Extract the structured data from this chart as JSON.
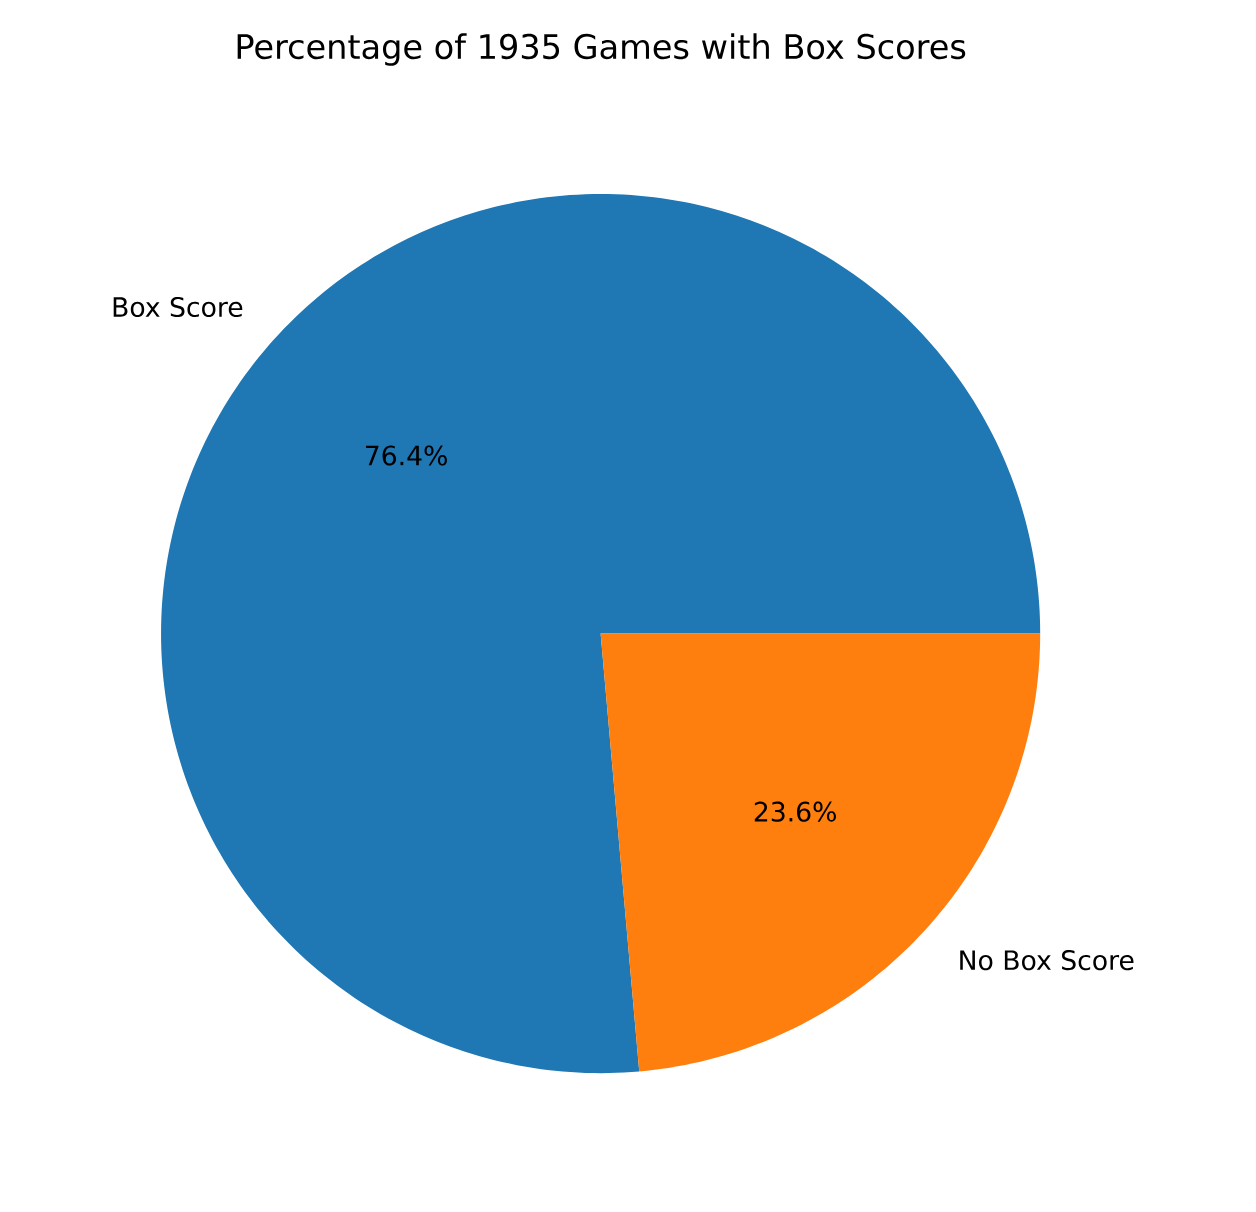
{
  "chart_data": {
    "type": "pie",
    "title": "Percentage of 1935 Games with Box Scores",
    "categories": [
      "Box Score",
      "No Box Score"
    ],
    "values": [
      76.4,
      23.6
    ],
    "value_labels": [
      "76.4%",
      "23.6%"
    ],
    "colors": [
      "#1f77b4",
      "#ff7f0e"
    ]
  }
}
